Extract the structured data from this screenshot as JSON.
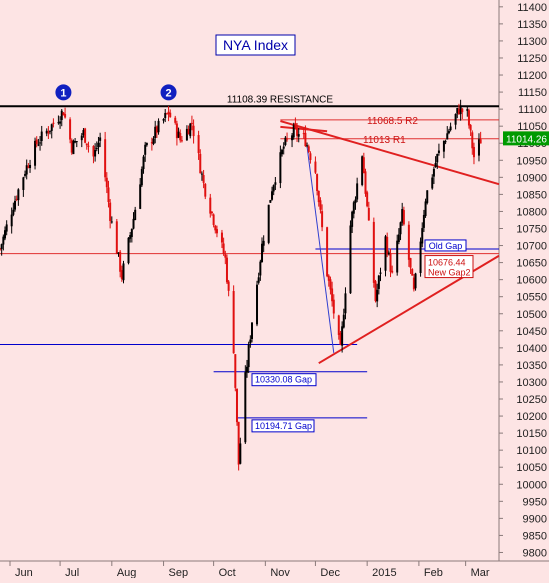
{
  "chart_data": {
    "type": "candlestick",
    "title": "NYA Index",
    "y_ticks": [
      9800,
      9850,
      9900,
      9950,
      10000,
      10050,
      10100,
      10150,
      10200,
      10250,
      10300,
      10350,
      10400,
      10450,
      10500,
      10550,
      10600,
      10650,
      10700,
      10750,
      10800,
      10850,
      10900,
      10950,
      11000,
      11050,
      11100,
      11150,
      11200,
      11250,
      11300,
      11350,
      11400
    ],
    "y_tick_labels": [
      "9800",
      "9850",
      "9900",
      "9950",
      "10000",
      "10050",
      "10100",
      "10150",
      "10200",
      "10250",
      "10300",
      "10350",
      "10400",
      "10450",
      "10500",
      "10550",
      "10600",
      "10650",
      "10700",
      "10750",
      "10800",
      "10850",
      "10900",
      "10950",
      "11000",
      "11050",
      "11100",
      "11150",
      "11200",
      "11250",
      "11300",
      "11350",
      "11400"
    ],
    "ylim": [
      9775,
      11420
    ],
    "x_labels": [
      {
        "label": "Jun",
        "date": "2014-06-01"
      },
      {
        "label": "Jul",
        "date": "2014-07-01"
      },
      {
        "label": "Aug",
        "date": "2014-08-01"
      },
      {
        "label": "Sep",
        "date": "2014-09-01"
      },
      {
        "label": "Oct",
        "date": "2014-10-01"
      },
      {
        "label": "Nov",
        "date": "2014-11-01"
      },
      {
        "label": "Dec",
        "date": "2014-12-01"
      },
      {
        "label": "2015",
        "date": "2015-01-01"
      },
      {
        "label": "Feb",
        "date": "2015-02-01"
      },
      {
        "label": "Mar",
        "date": "2015-03-01"
      }
    ],
    "xlim": [
      "2014-05-26",
      "2015-03-21"
    ],
    "last_price": {
      "value": 11014.26,
      "label": "11014.26"
    },
    "horizontal_levels": [
      {
        "value": 11108.39,
        "label": "11108.39 RESISTANCE",
        "color": "#000000",
        "from": "2014-05-26",
        "to": "2015-03-21"
      },
      {
        "value": 11068.5,
        "label": "11068.5  R2",
        "color": "#e03030",
        "from": "2014-11-10",
        "to": "2015-03-21"
      },
      {
        "value": 11013,
        "label": "11013 R1",
        "color": "#e03030",
        "from": "2014-11-10",
        "to": "2015-03-21"
      },
      {
        "value": 10690,
        "label": "Old Gap",
        "color": "#0000cc",
        "from": "2014-12-01",
        "to": "2015-03-21"
      },
      {
        "value": 10676.44,
        "label": "10676.44\nNew Gap2",
        "color": "#e03030",
        "from": "2014-05-26",
        "to": "2015-03-21"
      },
      {
        "value": 10410,
        "label": "",
        "color": "#0000cc",
        "from": "2014-05-26",
        "to": "2014-12-26"
      },
      {
        "value": 10330.08,
        "label": "10330.08 Gap",
        "color": "#0000cc",
        "from": "2014-10-01",
        "to": "2015-01-01"
      },
      {
        "value": 10194.71,
        "label": "10194.71 Gap",
        "color": "#0000cc",
        "from": "2014-10-15",
        "to": "2015-01-01"
      }
    ],
    "trendlines": [
      {
        "color": "#e02020",
        "from": {
          "x": "2014-11-10",
          "y": 11065
        },
        "to": {
          "x": "2015-03-21",
          "y": 10880
        }
      },
      {
        "color": "#e02020",
        "from": {
          "x": "2014-11-10",
          "y": 11048
        },
        "to": {
          "x": "2014-12-08",
          "y": 11035
        }
      },
      {
        "color": "#e02020",
        "from": {
          "x": "2014-12-03",
          "y": 10355
        },
        "to": {
          "x": "2015-03-21",
          "y": 10670
        }
      },
      {
        "color": "#3040d0",
        "from": {
          "x": "2014-11-26",
          "y": 10990
        },
        "to": {
          "x": "2014-12-12",
          "y": 10385
        }
      }
    ],
    "markers": [
      {
        "label": "1",
        "date": "2014-07-03",
        "value": 11108
      },
      {
        "label": "2",
        "date": "2014-09-04",
        "value": 11108
      }
    ],
    "anchors": [
      {
        "date": "2014-05-26",
        "value": 10690
      },
      {
        "date": "2014-06-03",
        "value": 10820
      },
      {
        "date": "2014-06-10",
        "value": 10920
      },
      {
        "date": "2014-06-17",
        "value": 11000
      },
      {
        "date": "2014-06-24",
        "value": 11040
      },
      {
        "date": "2014-07-03",
        "value": 11095
      },
      {
        "date": "2014-07-08",
        "value": 10990
      },
      {
        "date": "2014-07-15",
        "value": 11030
      },
      {
        "date": "2014-07-21",
        "value": 10960
      },
      {
        "date": "2014-07-25",
        "value": 11015
      },
      {
        "date": "2014-07-31",
        "value": 10790
      },
      {
        "date": "2014-08-07",
        "value": 10610
      },
      {
        "date": "2014-08-14",
        "value": 10780
      },
      {
        "date": "2014-08-21",
        "value": 10980
      },
      {
        "date": "2014-08-28",
        "value": 11040
      },
      {
        "date": "2014-09-04",
        "value": 11090
      },
      {
        "date": "2014-09-11",
        "value": 11010
      },
      {
        "date": "2014-09-18",
        "value": 11060
      },
      {
        "date": "2014-09-25",
        "value": 10880
      },
      {
        "date": "2014-10-02",
        "value": 10760
      },
      {
        "date": "2014-10-08",
        "value": 10660
      },
      {
        "date": "2014-10-13",
        "value": 10400
      },
      {
        "date": "2014-10-16",
        "value": 10060
      },
      {
        "date": "2014-10-20",
        "value": 10310
      },
      {
        "date": "2014-10-24",
        "value": 10480
      },
      {
        "date": "2014-10-30",
        "value": 10700
      },
      {
        "date": "2014-11-05",
        "value": 10870
      },
      {
        "date": "2014-11-12",
        "value": 10990
      },
      {
        "date": "2014-11-18",
        "value": 11035
      },
      {
        "date": "2014-11-25",
        "value": 11010
      },
      {
        "date": "2014-12-01",
        "value": 10920
      },
      {
        "date": "2014-12-08",
        "value": 10620
      },
      {
        "date": "2014-12-16",
        "value": 10390
      },
      {
        "date": "2014-12-22",
        "value": 10760
      },
      {
        "date": "2014-12-29",
        "value": 10970
      },
      {
        "date": "2015-01-06",
        "value": 10540
      },
      {
        "date": "2015-01-12",
        "value": 10720
      },
      {
        "date": "2015-01-16",
        "value": 10610
      },
      {
        "date": "2015-01-22",
        "value": 10790
      },
      {
        "date": "2015-01-29",
        "value": 10560
      },
      {
        "date": "2015-02-05",
        "value": 10840
      },
      {
        "date": "2015-02-12",
        "value": 10960
      },
      {
        "date": "2015-02-19",
        "value": 11040
      },
      {
        "date": "2015-02-25",
        "value": 11100
      },
      {
        "date": "2015-03-02",
        "value": 11085
      },
      {
        "date": "2015-03-06",
        "value": 10960
      },
      {
        "date": "2015-03-10",
        "value": 11010
      }
    ]
  },
  "colors": {
    "background": "#fde4e4",
    "axis_panel": "#fde4e4",
    "up_candle": "#000000",
    "down_candle": "#e01010",
    "title_text": "#0000aa",
    "last_price_box": "#009a00",
    "marker_fill": "#1020c0"
  }
}
